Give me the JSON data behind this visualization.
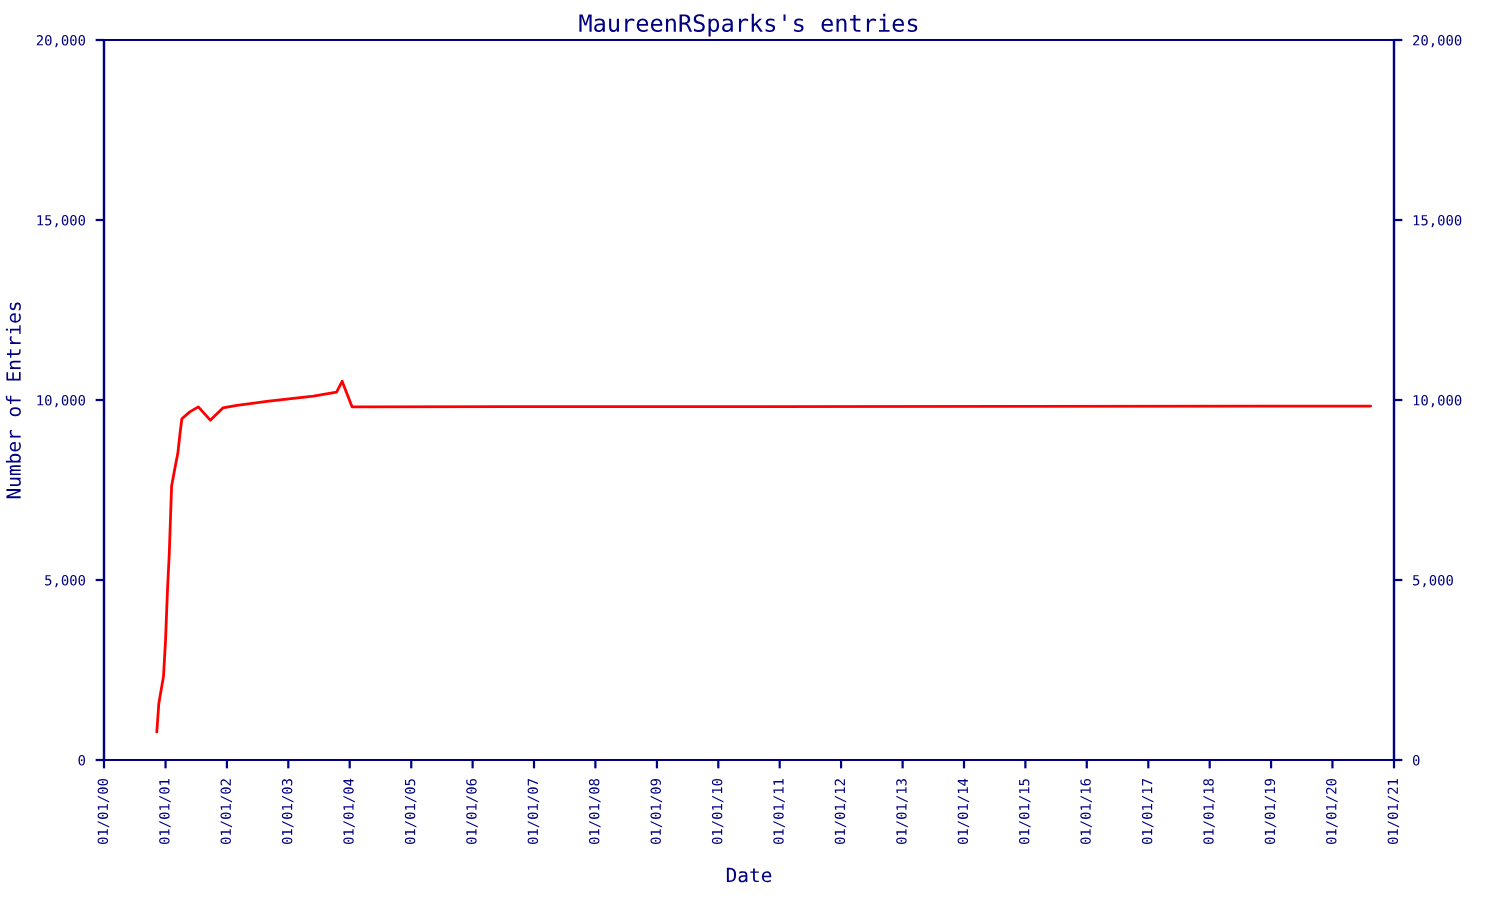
{
  "chart_data": {
    "type": "line",
    "title": "MaureenRSparks's entries",
    "xlabel": "Date",
    "ylabel": "Number of Entries",
    "x": [
      "2000-11-10",
      "2000-11-22",
      "2000-12-20",
      "2001-01-01",
      "2001-01-12",
      "2001-01-23",
      "2001-02-06",
      "2001-02-28",
      "2001-03-15",
      "2001-03-28",
      "2001-04-08",
      "2001-05-25",
      "2001-07-15",
      "2001-09-24",
      "2001-12-08",
      "2002-03-01",
      "2002-08-25",
      "2003-05-30",
      "2003-10-15",
      "2003-11-17",
      "2004-01-15",
      "2020-08-15"
    ],
    "series": [
      {
        "color": "#ff0000",
        "values": [
          780,
          1570,
          2330,
          3330,
          4670,
          5720,
          7610,
          8170,
          8520,
          9070,
          9480,
          9670,
          9810,
          9440,
          9780,
          9850,
          9960,
          10110,
          10220,
          10520,
          9810,
          9830
        ]
      }
    ],
    "xlim": [
      "2000-01-01",
      "2021-01-01"
    ],
    "xticks": [
      {
        "value": "2000-01-01",
        "label": "01/01/00"
      },
      {
        "value": "2001-01-01",
        "label": "01/01/01"
      },
      {
        "value": "2002-01-01",
        "label": "01/01/02"
      },
      {
        "value": "2003-01-01",
        "label": "01/01/03"
      },
      {
        "value": "2004-01-01",
        "label": "01/01/04"
      },
      {
        "value": "2005-01-01",
        "label": "01/01/05"
      },
      {
        "value": "2006-01-01",
        "label": "01/01/06"
      },
      {
        "value": "2007-01-01",
        "label": "01/01/07"
      },
      {
        "value": "2008-01-01",
        "label": "01/01/08"
      },
      {
        "value": "2009-01-01",
        "label": "01/01/09"
      },
      {
        "value": "2010-01-01",
        "label": "01/01/10"
      },
      {
        "value": "2011-01-01",
        "label": "01/01/11"
      },
      {
        "value": "2012-01-01",
        "label": "01/01/12"
      },
      {
        "value": "2013-01-01",
        "label": "01/01/13"
      },
      {
        "value": "2014-01-01",
        "label": "01/01/14"
      },
      {
        "value": "2015-01-01",
        "label": "01/01/15"
      },
      {
        "value": "2016-01-01",
        "label": "01/01/16"
      },
      {
        "value": "2017-01-01",
        "label": "01/01/17"
      },
      {
        "value": "2018-01-01",
        "label": "01/01/18"
      },
      {
        "value": "2019-01-01",
        "label": "01/01/19"
      },
      {
        "value": "2020-01-01",
        "label": "01/01/20"
      },
      {
        "value": "2021-01-01",
        "label": "01/01/21"
      }
    ],
    "ylim": [
      0,
      20000
    ],
    "yticks": [
      0,
      {
        "value": 5000,
        "label": "5,000"
      },
      {
        "value": 10000,
        "label": "10,000"
      },
      {
        "value": 15000,
        "label": "15,000"
      },
      {
        "value": 20000,
        "label": "20,000"
      }
    ],
    "y2lim": [
      0,
      20000
    ],
    "y2ticks": [
      0,
      {
        "value": 5000,
        "label": "5,000"
      },
      {
        "value": 10000,
        "label": "10,000"
      },
      {
        "value": 15000,
        "label": "15,000"
      },
      {
        "value": 20000,
        "label": "20,000"
      }
    ],
    "grid": false,
    "marker": "none",
    "line_style": "solid"
  }
}
